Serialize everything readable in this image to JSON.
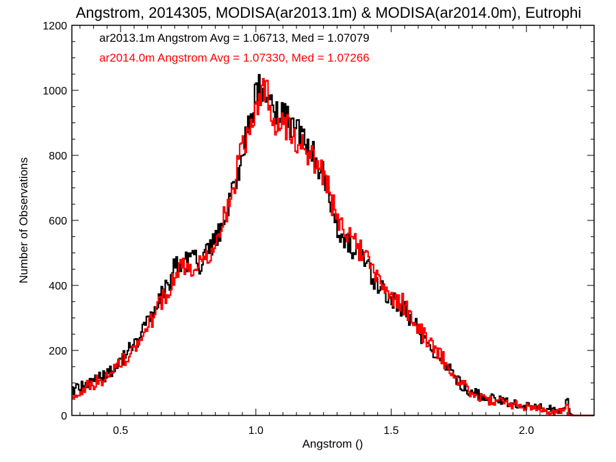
{
  "chart_data": {
    "type": "histogram",
    "title": "Angstrom, 2014305, MODISA(ar2013.1m) & MODISA(ar2014.0m), Eutrophi",
    "xlabel": "Angstrom ()",
    "ylabel": "Number of Observations",
    "xlim": [
      0.32,
      2.25
    ],
    "ylim": [
      0,
      1200
    ],
    "x_ticks": [
      {
        "value": 0.5,
        "label": "0.5"
      },
      {
        "value": 1.0,
        "label": "1.0"
      },
      {
        "value": 1.5,
        "label": "1.5"
      },
      {
        "value": 2.0,
        "label": "2.0"
      }
    ],
    "y_ticks": [
      {
        "value": 0,
        "label": "0"
      },
      {
        "value": 200,
        "label": "200"
      },
      {
        "value": 400,
        "label": "400"
      },
      {
        "value": 600,
        "label": "600"
      },
      {
        "value": 800,
        "label": "800"
      },
      {
        "value": 1000,
        "label": "1000"
      },
      {
        "value": 1200,
        "label": "1200"
      }
    ],
    "legend_placement": "top-left",
    "grid": false,
    "series": [
      {
        "name": "ar2013.1m",
        "legend": "ar2013.1m Angstrom Avg = 1.06713, Med = 1.07079",
        "color": "#000000",
        "points": [
          [
            0.32,
            80
          ],
          [
            0.35,
            90
          ],
          [
            0.4,
            105
          ],
          [
            0.45,
            125
          ],
          [
            0.5,
            170
          ],
          [
            0.55,
            220
          ],
          [
            0.6,
            290
          ],
          [
            0.65,
            360
          ],
          [
            0.7,
            450
          ],
          [
            0.75,
            480
          ],
          [
            0.8,
            470
          ],
          [
            0.85,
            530
          ],
          [
            0.9,
            650
          ],
          [
            0.95,
            800
          ],
          [
            1.0,
            980
          ],
          [
            1.02,
            1010
          ],
          [
            1.05,
            960
          ],
          [
            1.1,
            920
          ],
          [
            1.15,
            880
          ],
          [
            1.2,
            830
          ],
          [
            1.25,
            740
          ],
          [
            1.3,
            590
          ],
          [
            1.35,
            520
          ],
          [
            1.4,
            470
          ],
          [
            1.45,
            400
          ],
          [
            1.5,
            360
          ],
          [
            1.55,
            330
          ],
          [
            1.6,
            260
          ],
          [
            1.65,
            210
          ],
          [
            1.7,
            160
          ],
          [
            1.75,
            105
          ],
          [
            1.8,
            70
          ],
          [
            1.85,
            55
          ],
          [
            1.9,
            45
          ],
          [
            1.95,
            38
          ],
          [
            2.0,
            30
          ],
          [
            2.05,
            24
          ],
          [
            2.1,
            18
          ],
          [
            2.14,
            15
          ],
          [
            2.15,
            65
          ],
          [
            2.16,
            5
          ],
          [
            2.17,
            0
          ],
          [
            2.25,
            0
          ]
        ]
      },
      {
        "name": "ar2014.0m",
        "legend": "ar2014.0m Angstrom Avg = 1.07330, Med = 1.07266",
        "color": "#ff0000",
        "points": [
          [
            0.32,
            65
          ],
          [
            0.35,
            80
          ],
          [
            0.4,
            98
          ],
          [
            0.45,
            118
          ],
          [
            0.5,
            160
          ],
          [
            0.55,
            205
          ],
          [
            0.6,
            275
          ],
          [
            0.65,
            345
          ],
          [
            0.7,
            435
          ],
          [
            0.75,
            465
          ],
          [
            0.8,
            455
          ],
          [
            0.85,
            525
          ],
          [
            0.9,
            655
          ],
          [
            0.95,
            815
          ],
          [
            1.0,
            960
          ],
          [
            1.04,
            1015
          ],
          [
            1.07,
            900
          ],
          [
            1.1,
            900
          ],
          [
            1.15,
            850
          ],
          [
            1.2,
            810
          ],
          [
            1.25,
            740
          ],
          [
            1.3,
            610
          ],
          [
            1.35,
            550
          ],
          [
            1.4,
            490
          ],
          [
            1.45,
            420
          ],
          [
            1.5,
            375
          ],
          [
            1.55,
            340
          ],
          [
            1.6,
            265
          ],
          [
            1.65,
            215
          ],
          [
            1.7,
            165
          ],
          [
            1.75,
            110
          ],
          [
            1.8,
            68
          ],
          [
            1.85,
            50
          ],
          [
            1.9,
            40
          ],
          [
            1.95,
            33
          ],
          [
            2.0,
            26
          ],
          [
            2.05,
            20
          ],
          [
            2.1,
            14
          ],
          [
            2.14,
            10
          ],
          [
            2.15,
            40
          ],
          [
            2.16,
            3
          ],
          [
            2.17,
            0
          ],
          [
            2.25,
            0
          ]
        ]
      }
    ]
  }
}
